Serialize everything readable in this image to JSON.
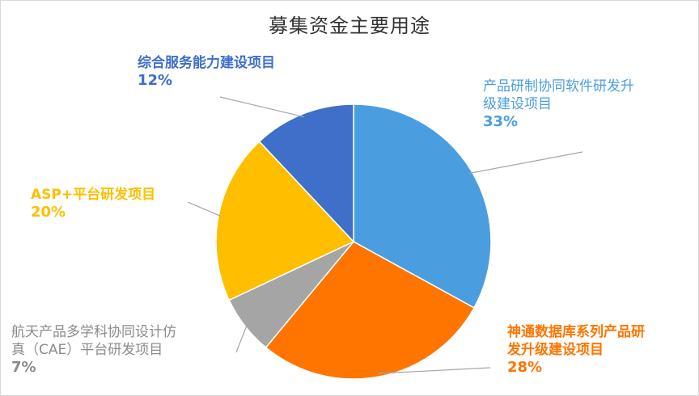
{
  "chart_data": {
    "type": "pie",
    "title": "募集资金主要用途",
    "slices": [
      {
        "label": "产品研制协同软件研发升级建设项目",
        "value": 33,
        "value_label": "33%",
        "color": "#4a9ee0"
      },
      {
        "label": "神通数据库系列产品研发升级建设项目",
        "value": 28,
        "value_label": "28%",
        "color": "#ff7500"
      },
      {
        "label": "航天产品多学科协同设计仿真（CAE）平台研发项目",
        "value": 7,
        "value_label": "7%",
        "color": "#a5a5a5"
      },
      {
        "label": "ASP+平台研发项目",
        "value": 20,
        "value_label": "20%",
        "color": "#ffbf00"
      },
      {
        "label": "综合服务能力建设项目",
        "value": 12,
        "value_label": "12%",
        "color": "#3e6fc9"
      }
    ],
    "start_angle_deg": 0,
    "direction": "clockwise",
    "legend": "none",
    "colors": {
      "slice_border": "#ffffff",
      "leader_line": "#a6a6a6",
      "title": "#333333",
      "label_text_gray": "#8c8c8c"
    }
  },
  "labels": {
    "s1": {
      "line1": "产品研制协同软件研发升",
      "line2": "级建设项目",
      "pct": "33%"
    },
    "s2": {
      "line1": "神通数据库系列产品研",
      "line2": "发升级建设项目",
      "pct": "28%"
    },
    "s3": {
      "line1": "航天产品多学科协同设计仿",
      "line2": "真（CAE）平台研发项目",
      "pct": "7%"
    },
    "s4": {
      "line1": "ASP+平台研发项目",
      "pct": "20%"
    },
    "s5": {
      "line1": "综合服务能力建设项目",
      "pct": "12%"
    }
  }
}
